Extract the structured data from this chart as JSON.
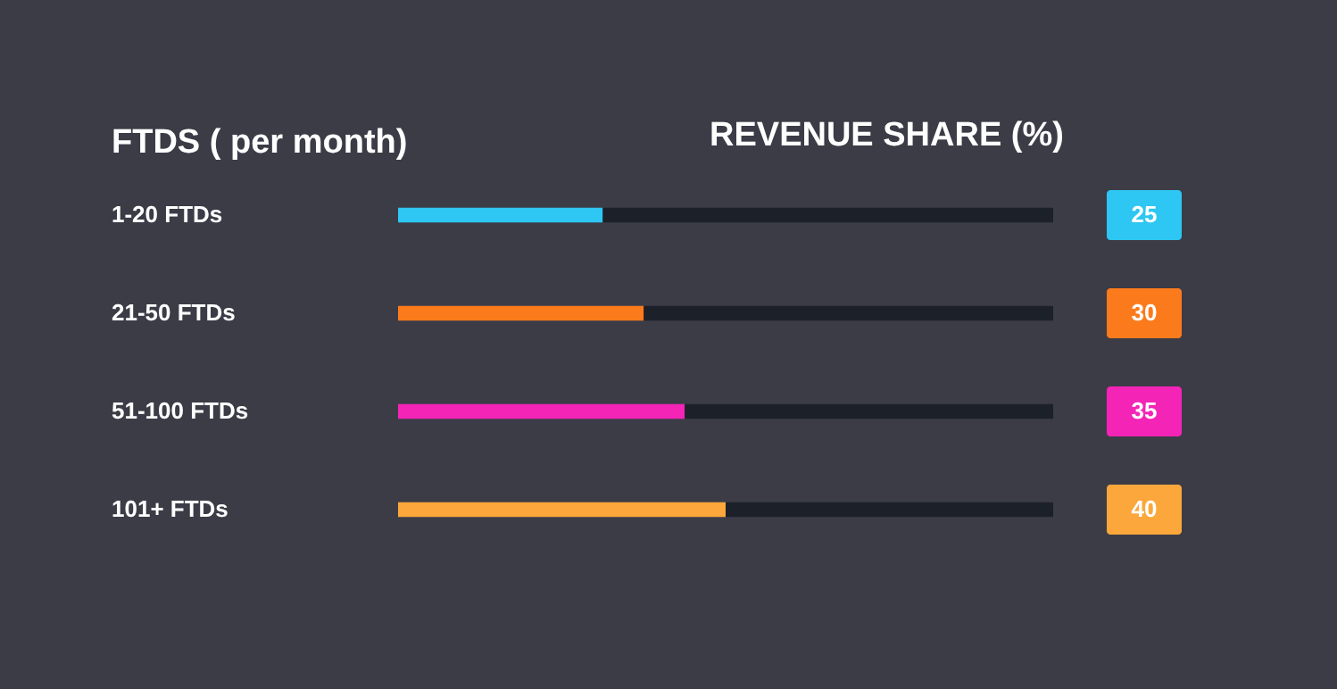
{
  "chart_data": {
    "type": "bar",
    "orientation": "horizontal",
    "stacked": true,
    "xlabel": "REVENUE SHARE (%)",
    "ylabel": "FTDS ( per month)",
    "categories": [
      "1-20 FTDs",
      "21-50 FTDs",
      "51-100 FTDs",
      "101+ FTDs"
    ],
    "series": [
      {
        "colors": [
          "#2ec6f2",
          "#fb7b1c",
          "#f424b7",
          "#fba73b"
        ],
        "values": [
          25,
          30,
          35,
          40
        ],
        "value_labels": [
          "25",
          "30",
          "35",
          "40"
        ]
      },
      {
        "color": "#1c2129",
        "values": [
          55,
          50,
          45,
          40
        ]
      }
    ],
    "xlim": [
      0,
      80
    ]
  }
}
